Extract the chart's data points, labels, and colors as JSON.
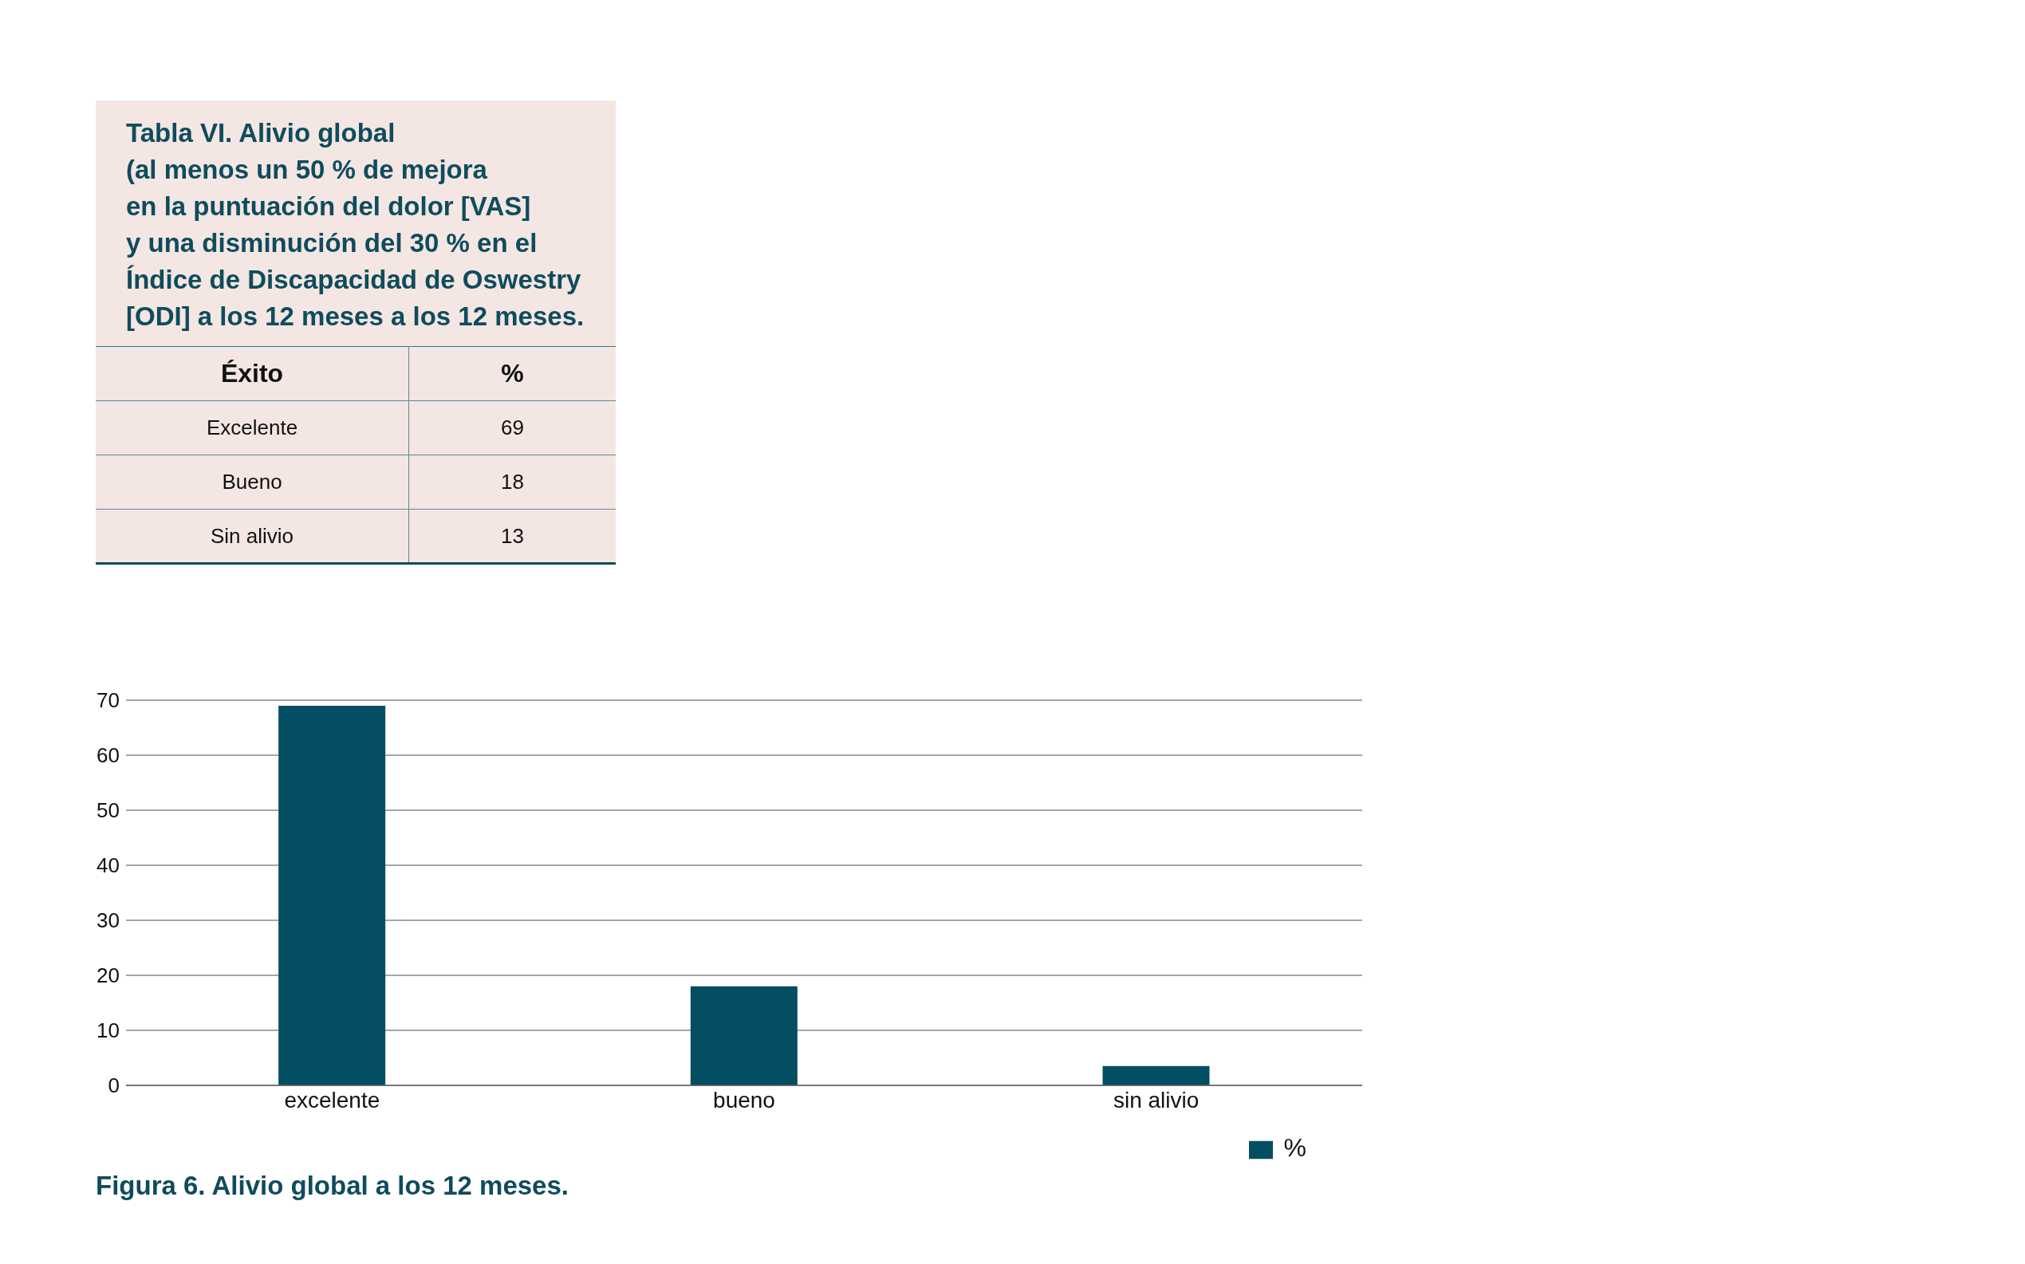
{
  "chart_data": [
    {
      "type": "other",
      "title": "Tabla VI. Alivio global\n(al menos un 50 % de mejora\nen la puntuación del dolor [VAS]\ny una disminución del 30 % en el\nÍndice de Discapacidad de Oswestry\n[ODI] a los 12 meses a los 12 meses.",
      "annotations": [
        "Éxito",
        "%",
        "Excelente",
        "69",
        "Bueno",
        "18",
        "Sin alivio",
        "13"
      ]
    },
    {
      "type": "bar",
      "categories": [
        "excelente",
        "bueno",
        "sin alivio"
      ],
      "series": [
        {
          "name": "%",
          "color": "#034e62",
          "values": [
            69,
            18,
            3.5
          ]
        }
      ],
      "ylim": [
        0,
        70
      ],
      "yticks": [
        0,
        10,
        20,
        30,
        40,
        50,
        60,
        70
      ],
      "grid": "y",
      "legend": "bottom right",
      "annotations": [
        "Figura 6. Alivio global a los 12 meses."
      ]
    }
  ]
}
